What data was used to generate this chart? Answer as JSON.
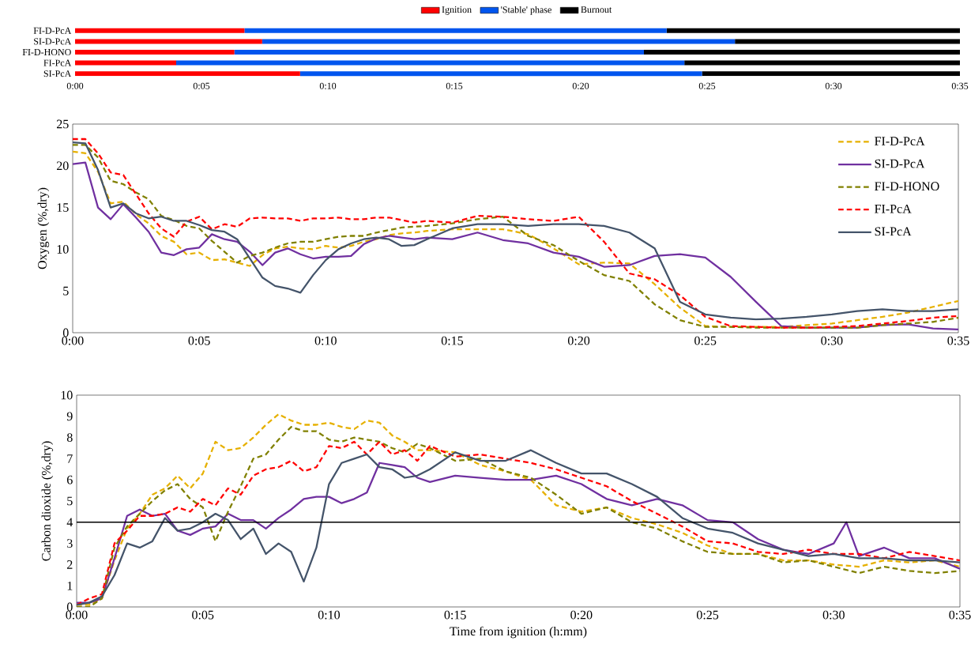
{
  "chart_data": [
    {
      "type": "bar",
      "orientation": "horizontal",
      "stacked": true,
      "categories": [
        "FI-D-PcA",
        "SI-D-PcA",
        "FI-D-HONO",
        "FI-PcA",
        "SI-PcA"
      ],
      "series": [
        {
          "name": "Ignition",
          "color": "#ff0000",
          "values": [
            6.7,
            7.4,
            6.3,
            4.0,
            8.9
          ]
        },
        {
          "name": "'Stable' phase",
          "color": "#0055ee",
          "values": [
            16.7,
            18.7,
            16.2,
            20.1,
            15.9
          ]
        },
        {
          "name": "Burnout",
          "color": "#000000",
          "values": [
            11.6,
            8.9,
            12.5,
            10.9,
            10.2
          ]
        }
      ],
      "xlim": [
        0,
        35
      ],
      "xticks": [
        {
          "value": 0,
          "label": "0:00"
        },
        {
          "value": 5,
          "label": "0:05"
        },
        {
          "value": 10,
          "label": "0:10"
        },
        {
          "value": 15,
          "label": "0:15"
        },
        {
          "value": 20,
          "label": "0:20"
        },
        {
          "value": 25,
          "label": "0:25"
        },
        {
          "value": 30,
          "label": "0:30"
        },
        {
          "value": 35,
          "label": "0:35"
        }
      ],
      "legend": "top"
    },
    {
      "type": "line",
      "ylabel": "Oxygen (%,dry)",
      "x": [
        0,
        0.5,
        1,
        1.5,
        2,
        2.5,
        3,
        3.5,
        4,
        4.5,
        5,
        5.5,
        6,
        6.5,
        7,
        7.5,
        8,
        8.5,
        9,
        9.5,
        10,
        10.5,
        11,
        11.5,
        12,
        12.5,
        13,
        13.5,
        14,
        15,
        16,
        17,
        18,
        19,
        20,
        21,
        22,
        23,
        24,
        25,
        26,
        27,
        28,
        29,
        30,
        31,
        32,
        33,
        34,
        35
      ],
      "series": [
        {
          "name": "FI-D-PcA",
          "color": "#e6b000",
          "line_style": "dashed",
          "values": [
            21.7,
            21.5,
            19.3,
            15.5,
            15.7,
            14.2,
            13.1,
            11.6,
            10.9,
            9.4,
            9.6,
            8.7,
            8.8,
            8.4,
            8.0,
            9.3,
            10.1,
            10.3,
            10.1,
            10.0,
            10.4,
            10.2,
            10.4,
            10.9,
            11.2,
            11.7,
            11.9,
            12.0,
            12.2,
            12.4,
            12.4,
            12.4,
            11.8,
            10.1,
            8.2,
            8.4,
            8.3,
            5.8,
            3.0,
            0.8,
            0.7,
            0.7,
            0.7,
            0.9,
            1.1,
            1.5,
            1.9,
            2.4,
            3.1,
            3.8
          ]
        },
        {
          "name": "SI-D-PcA",
          "color": "#7030a0",
          "line_style": "solid",
          "values": [
            20.2,
            20.4,
            15.0,
            13.6,
            15.4,
            13.8,
            12.1,
            9.6,
            9.3,
            10.0,
            10.2,
            11.8,
            11.2,
            10.9,
            9.7,
            8.1,
            9.6,
            10.1,
            9.4,
            8.9,
            9.1,
            9.1,
            9.2,
            10.6,
            11.3,
            11.6,
            11.4,
            11.2,
            11.4,
            11.2,
            12.0,
            11.1,
            10.7,
            9.6,
            9.1,
            7.9,
            8.1,
            9.2,
            9.4,
            9.0,
            6.7,
            3.7,
            0.8,
            0.6,
            0.6,
            0.6,
            0.9,
            1.0,
            0.5,
            0.4
          ]
        },
        {
          "name": "FI-D-HONO",
          "color": "#808000",
          "line_style": "dashed",
          "values": [
            22.5,
            22.5,
            21.0,
            18.2,
            17.8,
            16.8,
            16.0,
            14.0,
            13.5,
            12.8,
            12.5,
            11.0,
            9.7,
            8.4,
            9.2,
            9.6,
            10.2,
            10.7,
            10.9,
            10.9,
            11.2,
            11.5,
            11.6,
            11.6,
            12.0,
            12.3,
            12.6,
            12.7,
            12.8,
            13.1,
            13.6,
            13.9,
            11.6,
            10.5,
            8.6,
            6.9,
            6.2,
            3.4,
            1.5,
            0.7,
            0.7,
            0.6,
            0.6,
            0.6,
            0.6,
            0.6,
            0.9,
            1.1,
            1.3,
            1.8
          ]
        },
        {
          "name": "FI-PcA",
          "color": "#ff0000",
          "line_style": "dashed",
          "values": [
            23.2,
            23.2,
            21.5,
            19.2,
            18.9,
            16.6,
            14.3,
            12.5,
            11.5,
            13.3,
            13.9,
            12.4,
            13.0,
            12.7,
            13.7,
            13.8,
            13.7,
            13.7,
            13.4,
            13.7,
            13.7,
            13.8,
            13.6,
            13.6,
            13.8,
            13.8,
            13.5,
            13.2,
            13.4,
            13.2,
            14.0,
            13.9,
            13.6,
            13.4,
            13.9,
            10.9,
            7.1,
            6.4,
            4.5,
            1.9,
            0.8,
            0.7,
            0.6,
            0.6,
            0.7,
            0.8,
            1.1,
            1.4,
            1.8,
            2.0
          ]
        },
        {
          "name": "SI-PcA",
          "color": "#44546a",
          "line_style": "solid",
          "values": [
            22.8,
            22.7,
            19.5,
            15.0,
            15.5,
            14.3,
            13.7,
            13.9,
            13.4,
            13.4,
            12.9,
            12.3,
            12.1,
            11.2,
            8.9,
            6.6,
            5.6,
            5.3,
            4.8,
            6.9,
            8.7,
            10.0,
            10.7,
            11.2,
            11.4,
            11.2,
            10.4,
            10.5,
            11.2,
            12.5,
            13.0,
            13.0,
            12.8,
            13.0,
            13.0,
            12.8,
            12.0,
            10.1,
            3.7,
            2.2,
            1.8,
            1.6,
            1.7,
            1.9,
            2.2,
            2.6,
            2.8,
            2.6,
            2.6,
            2.8
          ]
        }
      ],
      "xlim": [
        0,
        35
      ],
      "xticks": [
        {
          "value": 0,
          "label": "0:00"
        },
        {
          "value": 5,
          "label": "0:05"
        },
        {
          "value": 10,
          "label": "0:10"
        },
        {
          "value": 15,
          "label": "0:15"
        },
        {
          "value": 20,
          "label": "0:20"
        },
        {
          "value": 25,
          "label": "0:25"
        },
        {
          "value": 30,
          "label": "0:30"
        },
        {
          "value": 35,
          "label": "0:35"
        }
      ],
      "ylim": [
        0,
        25
      ],
      "yticks": [
        0,
        5,
        10,
        15,
        20,
        25
      ],
      "legend": "top right"
    },
    {
      "type": "line",
      "xlabel": "Time from ignition (h:mm)",
      "ylabel": "Carbon dioxide (%,dry)",
      "x": [
        0,
        0.5,
        1,
        1.5,
        2,
        2.5,
        3,
        3.5,
        4,
        4.5,
        5,
        5.5,
        6,
        6.5,
        7,
        7.5,
        8,
        8.5,
        9,
        9.5,
        10,
        10.5,
        11,
        11.5,
        12,
        12.5,
        13,
        13.5,
        14,
        15,
        16,
        17,
        18,
        19,
        20,
        21,
        22,
        23,
        24,
        25,
        26,
        27,
        28,
        29,
        30,
        31,
        32,
        33,
        34,
        35
      ],
      "series": [
        {
          "color": "#e6b000",
          "line_style": "dashed",
          "values": [
            0.1,
            0.1,
            0.4,
            2.2,
            3.7,
            4.4,
            5.3,
            5.6,
            6.2,
            5.6,
            6.3,
            7.8,
            7.4,
            7.5,
            8.0,
            8.6,
            9.1,
            8.8,
            8.6,
            8.6,
            8.7,
            8.5,
            8.4,
            8.8,
            8.7,
            8.1,
            7.8,
            7.4,
            7.4,
            7.3,
            6.7,
            6.4,
            6.0,
            4.8,
            4.5,
            4.7,
            4.2,
            3.9,
            3.5,
            2.9,
            2.5,
            2.5,
            2.2,
            2.2,
            2.0,
            1.9,
            2.2,
            2.1,
            2.2,
            1.9
          ]
        },
        {
          "color": "#7030a0",
          "line_style": "solid",
          "x": [
            0,
            0.5,
            1,
            1.5,
            2,
            2.5,
            3,
            3.5,
            4,
            4.5,
            5,
            5.5,
            6,
            6.5,
            7,
            7.5,
            8,
            8.5,
            9,
            9.5,
            10,
            10.5,
            11,
            11.5,
            12,
            12.5,
            13,
            13.5,
            14,
            15,
            16,
            17,
            18,
            19,
            20,
            21,
            22,
            23,
            24,
            25,
            26,
            27,
            28,
            29,
            30,
            30.5,
            31,
            32,
            33,
            34,
            35
          ],
          "values": [
            0.2,
            0.2,
            0.4,
            2.3,
            4.3,
            4.6,
            4.3,
            4.4,
            3.6,
            3.4,
            3.7,
            3.8,
            4.4,
            4.1,
            4.1,
            3.7,
            4.2,
            4.6,
            5.1,
            5.2,
            5.2,
            4.9,
            5.1,
            5.4,
            6.8,
            6.7,
            6.6,
            6.1,
            5.9,
            6.2,
            6.1,
            6.0,
            6.0,
            6.2,
            5.8,
            5.1,
            4.8,
            5.1,
            4.8,
            4.1,
            4.0,
            3.2,
            2.7,
            2.5,
            3.0,
            4.0,
            2.4,
            2.8,
            2.3,
            2.3,
            1.8
          ]
        },
        {
          "color": "#808000",
          "line_style": "dashed",
          "values": [
            0.0,
            0.0,
            0.4,
            2.8,
            3.8,
            4.4,
            5.0,
            5.5,
            5.8,
            5.1,
            4.7,
            3.1,
            4.5,
            5.7,
            7.0,
            7.2,
            7.9,
            8.5,
            8.3,
            8.3,
            7.9,
            7.8,
            8.0,
            7.9,
            7.8,
            7.5,
            7.3,
            7.7,
            7.5,
            6.9,
            7.0,
            6.4,
            6.1,
            5.3,
            4.4,
            4.7,
            4.0,
            3.7,
            3.1,
            2.6,
            2.5,
            2.5,
            2.1,
            2.2,
            1.9,
            1.6,
            1.9,
            1.7,
            1.6,
            1.7
          ]
        },
        {
          "color": "#ff0000",
          "line_style": "dashed",
          "values": [
            0.1,
            0.4,
            0.6,
            3.0,
            3.6,
            4.3,
            4.3,
            4.4,
            4.7,
            4.5,
            5.1,
            4.8,
            5.6,
            5.3,
            6.2,
            6.5,
            6.6,
            6.9,
            6.4,
            6.6,
            7.6,
            7.5,
            7.8,
            7.2,
            7.8,
            7.2,
            7.4,
            6.9,
            7.6,
            7.1,
            7.2,
            7.0,
            6.8,
            6.5,
            6.1,
            5.7,
            5.0,
            4.4,
            3.8,
            3.1,
            3.0,
            2.6,
            2.5,
            2.7,
            2.5,
            2.5,
            2.3,
            2.6,
            2.4,
            2.2
          ]
        },
        {
          "color": "#44546a",
          "line_style": "solid",
          "values": [
            0.1,
            0.2,
            0.5,
            1.5,
            3.0,
            2.8,
            3.1,
            4.2,
            3.6,
            3.7,
            4.0,
            4.4,
            4.1,
            3.2,
            3.7,
            2.5,
            3.0,
            2.6,
            1.2,
            2.8,
            5.8,
            6.8,
            7.0,
            7.2,
            6.6,
            6.5,
            6.1,
            6.2,
            6.5,
            7.3,
            6.9,
            6.9,
            7.4,
            6.8,
            6.3,
            6.3,
            5.8,
            5.2,
            4.2,
            3.7,
            3.5,
            3.0,
            2.7,
            2.4,
            2.5,
            2.3,
            2.3,
            2.2,
            2.2,
            2.1
          ]
        }
      ],
      "xlim": [
        0,
        35
      ],
      "xticks": [
        {
          "value": 0,
          "label": "0:00"
        },
        {
          "value": 5,
          "label": "0:05"
        },
        {
          "value": 10,
          "label": "0:10"
        },
        {
          "value": 15,
          "label": "0:15"
        },
        {
          "value": 20,
          "label": "0:20"
        },
        {
          "value": 25,
          "label": "0:25"
        },
        {
          "value": 30,
          "label": "0:30"
        },
        {
          "value": 35,
          "label": "0:35"
        }
      ],
      "ylim": [
        0,
        10
      ],
      "yticks": [
        0,
        1,
        2,
        3,
        4,
        5,
        6,
        7,
        8,
        9,
        10
      ],
      "ref_lines": [
        {
          "axis": "y",
          "value": 4,
          "color": "#000000"
        }
      ]
    }
  ]
}
